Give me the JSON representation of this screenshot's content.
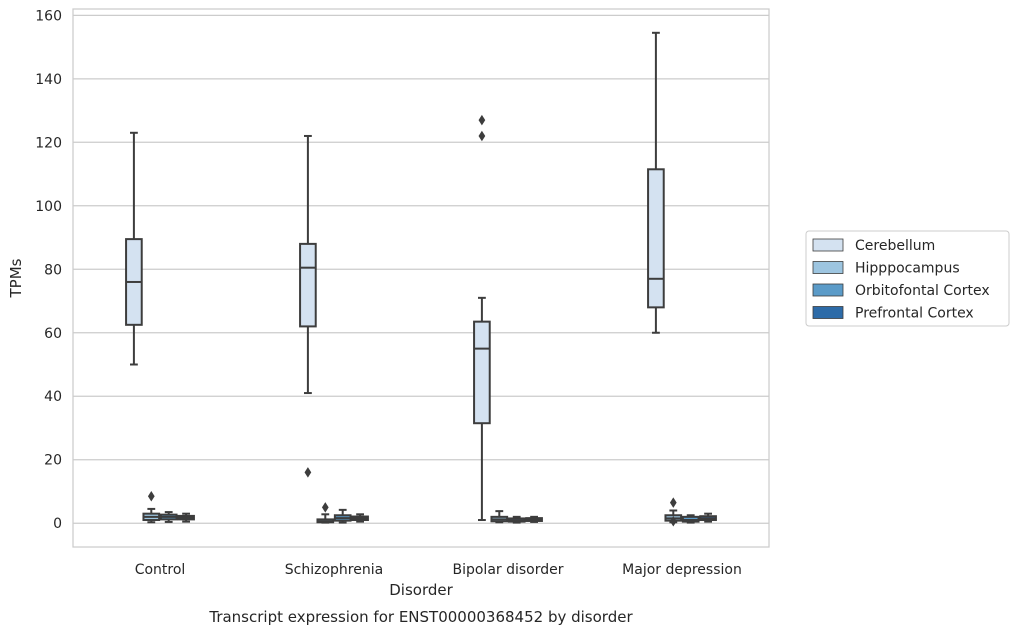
{
  "chart_data": {
    "type": "box",
    "title": "Transcript expression for ENST00000368452 by disorder",
    "xlabel": "Disorder",
    "ylabel": "TPMs",
    "ylim": [
      -7.5,
      162
    ],
    "yticks": [
      0,
      20,
      40,
      60,
      80,
      100,
      120,
      140,
      160
    ],
    "grid": true,
    "legend_position": "right",
    "categories": [
      "Control",
      "Schizophrenia",
      "Bipolar disorder",
      "Major depression"
    ],
    "series": [
      {
        "name": "Cerebellum",
        "color": "#d4e2f1",
        "boxes": [
          {
            "min": 50,
            "q1": 62.5,
            "median": 76,
            "q3": 89.5,
            "max": 123,
            "outliers": []
          },
          {
            "min": 41,
            "q1": 62,
            "median": 80.5,
            "q3": 88,
            "max": 122,
            "outliers": [
              16
            ]
          },
          {
            "min": 1,
            "q1": 31.5,
            "median": 55,
            "q3": 63.5,
            "max": 71,
            "outliers": [
              122,
              127
            ]
          },
          {
            "min": 60,
            "q1": 68,
            "median": 77,
            "q3": 111.5,
            "max": 154.5,
            "outliers": []
          }
        ]
      },
      {
        "name": "Hipppocampus",
        "color": "#9dc5e0",
        "boxes": [
          {
            "min": 0.3,
            "q1": 1,
            "median": 2,
            "q3": 3,
            "max": 4.5,
            "outliers": [
              8.5
            ]
          },
          {
            "min": 0.2,
            "q1": 0.3,
            "median": 0.6,
            "q3": 1.2,
            "max": 2.8,
            "outliers": [
              5
            ]
          },
          {
            "min": 0.3,
            "q1": 0.6,
            "median": 1.2,
            "q3": 2,
            "max": 3.8,
            "outliers": []
          },
          {
            "min": 0.3,
            "q1": 0.8,
            "median": 1.5,
            "q3": 2.5,
            "max": 4,
            "outliers": [
              6.5,
              0.6
            ]
          }
        ]
      },
      {
        "name": "Orbitofontal Cortex",
        "color": "#5b9bc8",
        "boxes": [
          {
            "min": 0.4,
            "q1": 1.2,
            "median": 2,
            "q3": 2.7,
            "max": 3.5,
            "outliers": []
          },
          {
            "min": 0.2,
            "q1": 0.8,
            "median": 1.6,
            "q3": 2.5,
            "max": 4.2,
            "outliers": []
          },
          {
            "min": 0.2,
            "q1": 0.5,
            "median": 0.9,
            "q3": 1.5,
            "max": 2,
            "outliers": []
          },
          {
            "min": 0.2,
            "q1": 0.5,
            "median": 1,
            "q3": 2,
            "max": 2.5,
            "outliers": []
          }
        ]
      },
      {
        "name": "Prefrontal Cortex",
        "color": "#2d6ba8",
        "boxes": [
          {
            "min": 0.5,
            "q1": 1.2,
            "median": 1.8,
            "q3": 2.3,
            "max": 3,
            "outliers": []
          },
          {
            "min": 0.5,
            "q1": 1,
            "median": 1.5,
            "q3": 2.1,
            "max": 2.8,
            "outliers": []
          },
          {
            "min": 0.4,
            "q1": 0.7,
            "median": 1.1,
            "q3": 1.6,
            "max": 2,
            "outliers": []
          },
          {
            "min": 0.5,
            "q1": 1,
            "median": 1.5,
            "q3": 2.2,
            "max": 3,
            "outliers": []
          }
        ]
      }
    ]
  }
}
